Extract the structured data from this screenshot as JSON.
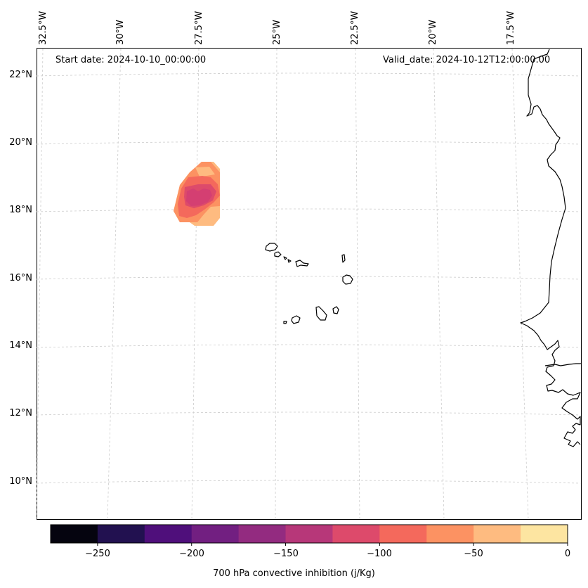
{
  "header": {
    "start_date": "Start date: 2024-10-10_00:00:00",
    "valid_date": "Valid_date: 2024-10-12T12:00:00.00"
  },
  "map": {
    "lon_labels": [
      "32.5°W",
      "30°W",
      "27.5°W",
      "25°W",
      "22.5°W",
      "20°W",
      "17.5°W"
    ],
    "lat_labels": [
      "22°N",
      "20°N",
      "18°N",
      "16°N",
      "14°N",
      "12°N",
      "10°N"
    ],
    "coastline_color": "#000000",
    "gridline_color": "#cccccc"
  },
  "field": {
    "variable": "700 hPa convective inhibition",
    "levels_present": [
      -150,
      -125,
      -100,
      -75,
      -50,
      -25
    ]
  },
  "colorbar": {
    "label": "700 hPa convective inhibition (j/Kg)",
    "tick_labels": [
      "−250",
      "−200",
      "−150",
      "−100",
      "−50",
      "0"
    ],
    "bounds": [
      -275,
      -250,
      -225,
      -200,
      -175,
      -150,
      -125,
      -100,
      -75,
      -50,
      -25,
      0
    ],
    "colors": [
      "#05040f",
      "#221150",
      "#4f0f7b",
      "#721f81",
      "#932b80",
      "#b73779",
      "#dd4a6b",
      "#f4695c",
      "#fc9262",
      "#febb80",
      "#fde5a1"
    ]
  }
}
